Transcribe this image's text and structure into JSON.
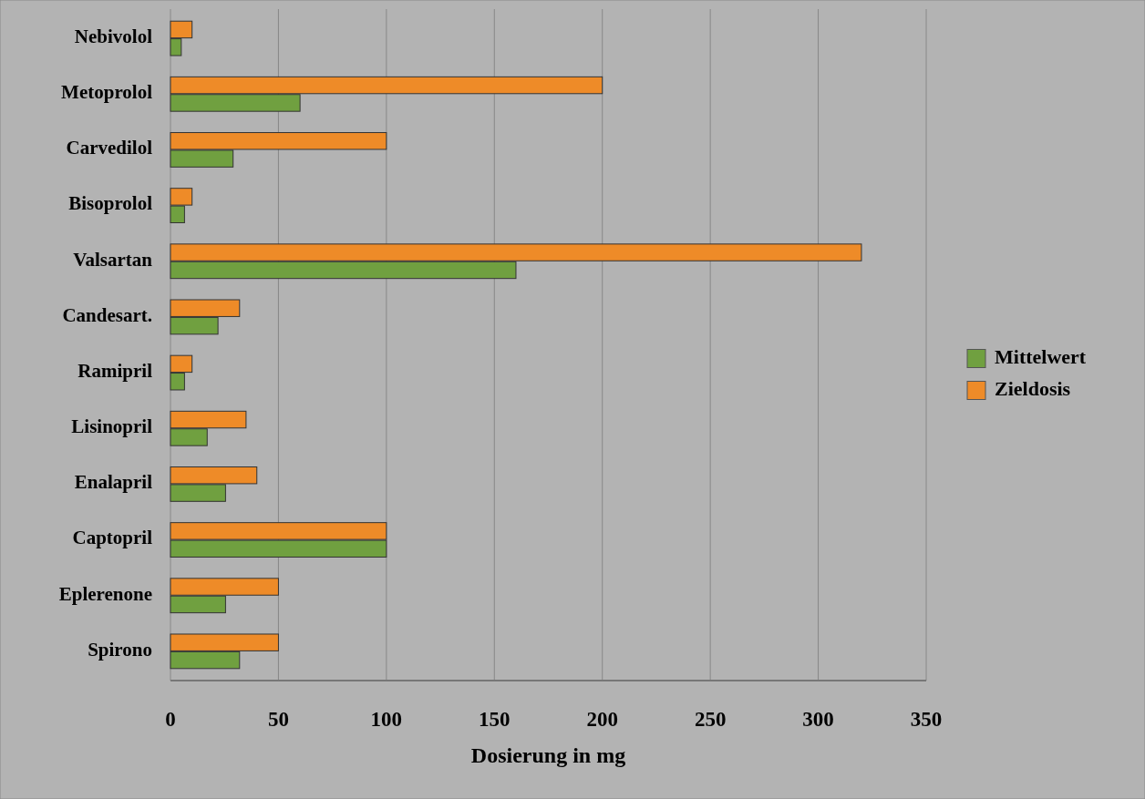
{
  "chart_data": {
    "type": "bar",
    "orientation": "horizontal",
    "xlabel": "Dosierung in mg",
    "categories": [
      "Nebivolol",
      "Metoprolol",
      "Carvedilol",
      "Bisoprolol",
      "Valsartan",
      "Candesart.",
      "Ramipril",
      "Lisinopril",
      "Enalapril",
      "Captopril",
      "Eplerenone",
      "Spirono"
    ],
    "series": [
      {
        "name": "Mittelwert",
        "color": "#70a040",
        "values": [
          5,
          60,
          29,
          6.5,
          160,
          22,
          6.5,
          17,
          25.5,
          100,
          25.5,
          32
        ]
      },
      {
        "name": "Zieldosis",
        "color": "#ee8b28",
        "values": [
          10,
          200,
          100,
          10,
          320,
          32,
          10,
          35,
          40,
          100,
          50,
          50
        ]
      }
    ],
    "xlim": [
      0,
      350
    ],
    "xticks": [
      0,
      50,
      100,
      150,
      200,
      250,
      300,
      350
    ],
    "grid": "x",
    "legend": "right"
  }
}
